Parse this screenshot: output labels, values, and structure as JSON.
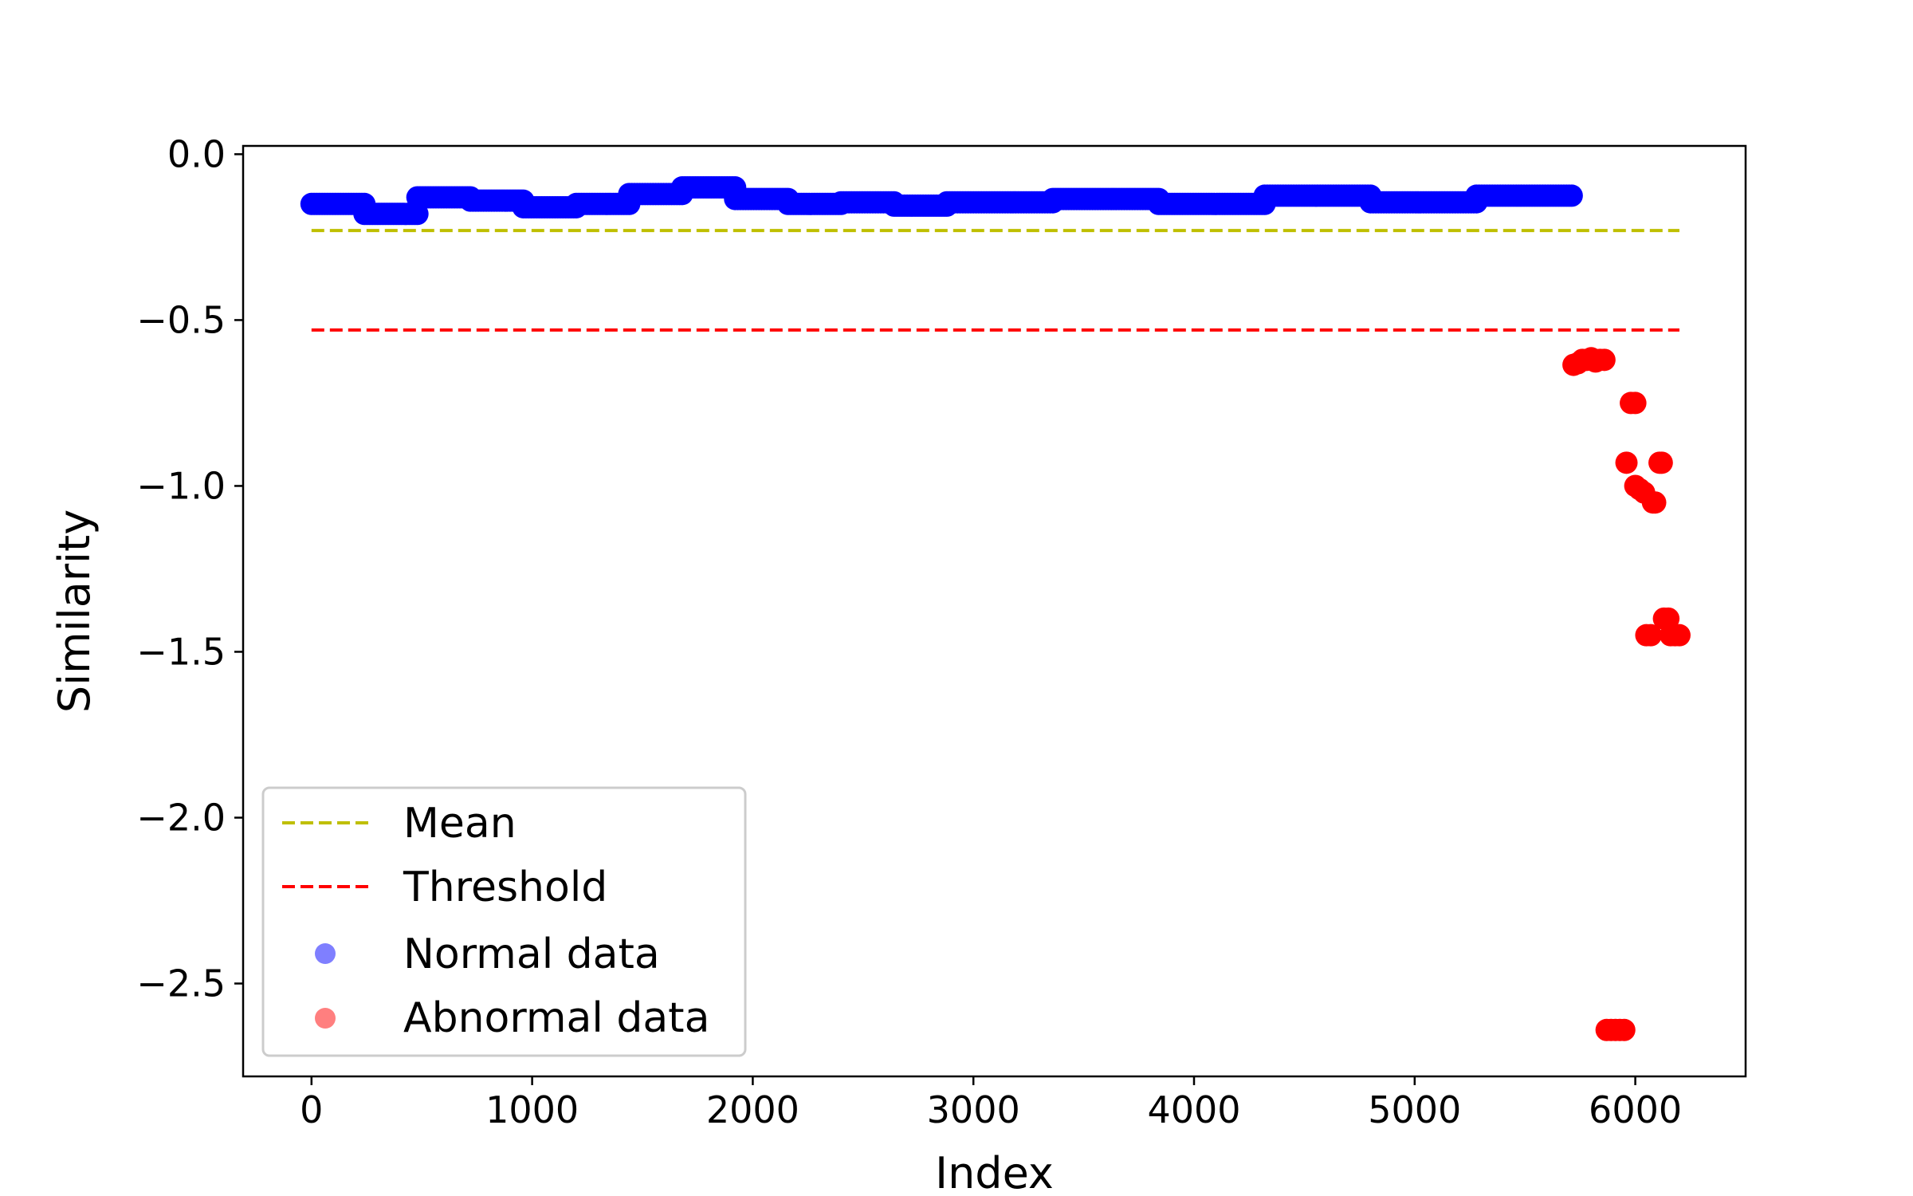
{
  "chart_data": {
    "type": "scatter",
    "title": "",
    "xlabel": "Index",
    "ylabel": "Similarity",
    "xlim": [
      -310,
      6500
    ],
    "ylim": [
      -2.78,
      0.025
    ],
    "x_ticks": [
      0,
      1000,
      2000,
      3000,
      4000,
      5000,
      6000
    ],
    "x_tick_labels": [
      "0",
      "1000",
      "2000",
      "3000",
      "4000",
      "5000",
      "6000"
    ],
    "y_ticks": [
      0.0,
      -0.5,
      -1.0,
      -1.5,
      -2.0,
      -2.5
    ],
    "y_tick_labels": [
      "0.0",
      "−0.5",
      "−1.0",
      "−1.5",
      "−2.0",
      "−2.5"
    ],
    "grid": false,
    "legend_position": "lower-left",
    "lines": [
      {
        "name": "Mean",
        "y": -0.23,
        "x_range": [
          0,
          6200
        ],
        "color": "#bfbf00",
        "style": "dashed"
      },
      {
        "name": "Threshold",
        "y": -0.53,
        "x_range": [
          0,
          6200
        ],
        "color": "#ff0000",
        "style": "dashed"
      }
    ],
    "series": [
      {
        "name": "Normal data",
        "color": "#0000ff",
        "segments": [
          {
            "x_start": 0,
            "x_end": 240,
            "y": -0.15
          },
          {
            "x_start": 240,
            "x_end": 480,
            "y": -0.18
          },
          {
            "x_start": 480,
            "x_end": 720,
            "y": -0.13
          },
          {
            "x_start": 720,
            "x_end": 960,
            "y": -0.14
          },
          {
            "x_start": 960,
            "x_end": 1200,
            "y": -0.16
          },
          {
            "x_start": 1200,
            "x_end": 1440,
            "y": -0.15
          },
          {
            "x_start": 1440,
            "x_end": 1680,
            "y": -0.12
          },
          {
            "x_start": 1680,
            "x_end": 1920,
            "y": -0.1
          },
          {
            "x_start": 1920,
            "x_end": 2160,
            "y": -0.135
          },
          {
            "x_start": 2160,
            "x_end": 2400,
            "y": -0.15
          },
          {
            "x_start": 2400,
            "x_end": 2640,
            "y": -0.145
          },
          {
            "x_start": 2640,
            "x_end": 2880,
            "y": -0.155
          },
          {
            "x_start": 2880,
            "x_end": 3360,
            "y": -0.145
          },
          {
            "x_start": 3360,
            "x_end": 3840,
            "y": -0.135
          },
          {
            "x_start": 3840,
            "x_end": 4320,
            "y": -0.15
          },
          {
            "x_start": 4320,
            "x_end": 4800,
            "y": -0.125
          },
          {
            "x_start": 4800,
            "x_end": 5280,
            "y": -0.145
          },
          {
            "x_start": 5280,
            "x_end": 5720,
            "y": -0.125
          }
        ]
      },
      {
        "name": "Abnormal data",
        "color": "#ff0000",
        "points": [
          {
            "x": 5720,
            "y": -0.635
          },
          {
            "x": 5740,
            "y": -0.63
          },
          {
            "x": 5760,
            "y": -0.62
          },
          {
            "x": 5780,
            "y": -0.62
          },
          {
            "x": 5800,
            "y": -0.615
          },
          {
            "x": 5820,
            "y": -0.625
          },
          {
            "x": 5840,
            "y": -0.62
          },
          {
            "x": 5860,
            "y": -0.62
          },
          {
            "x": 5870,
            "y": -2.64
          },
          {
            "x": 5890,
            "y": -2.64
          },
          {
            "x": 5910,
            "y": -2.64
          },
          {
            "x": 5930,
            "y": -2.64
          },
          {
            "x": 5950,
            "y": -2.64
          },
          {
            "x": 5960,
            "y": -0.93
          },
          {
            "x": 5980,
            "y": -0.75
          },
          {
            "x": 6000,
            "y": -0.75
          },
          {
            "x": 6000,
            "y": -1.0
          },
          {
            "x": 6020,
            "y": -1.01
          },
          {
            "x": 6040,
            "y": -1.02
          },
          {
            "x": 6050,
            "y": -1.45
          },
          {
            "x": 6070,
            "y": -1.45
          },
          {
            "x": 6080,
            "y": -1.05
          },
          {
            "x": 6090,
            "y": -1.05
          },
          {
            "x": 6110,
            "y": -0.93
          },
          {
            "x": 6120,
            "y": -0.93
          },
          {
            "x": 6130,
            "y": -1.4
          },
          {
            "x": 6150,
            "y": -1.4
          },
          {
            "x": 6160,
            "y": -1.45
          },
          {
            "x": 6180,
            "y": -1.45
          },
          {
            "x": 6200,
            "y": -1.45
          }
        ]
      }
    ]
  }
}
